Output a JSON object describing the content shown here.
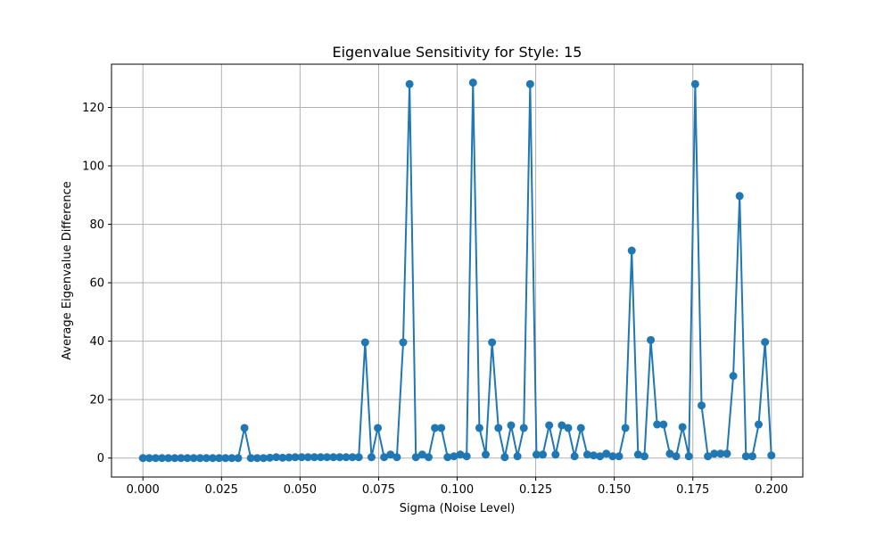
{
  "chart_data": {
    "type": "line",
    "title": "Eigenvalue Sensitivity for Style: 15",
    "xlabel": "Sigma (Noise Level)",
    "ylabel": "Average Eigenvalue Difference",
    "xlim": [
      -0.01,
      0.21
    ],
    "ylim": [
      -6.5,
      134.8
    ],
    "xticks": [
      0.0,
      0.025,
      0.05,
      0.075,
      0.1,
      0.125,
      0.15,
      0.175,
      0.2
    ],
    "xtick_labels": [
      "0.000",
      "0.025",
      "0.050",
      "0.075",
      "0.100",
      "0.125",
      "0.150",
      "0.175",
      "0.200"
    ],
    "yticks": [
      0,
      20,
      40,
      60,
      80,
      100,
      120
    ],
    "ytick_labels": [
      "0",
      "20",
      "40",
      "60",
      "80",
      "100",
      "120"
    ],
    "grid": true,
    "color": "#1f77b4",
    "marker": "circle",
    "series": [
      {
        "x": [
          0.0,
          0.00202,
          0.00404,
          0.00606,
          0.00808,
          0.0101,
          0.01212,
          0.01414,
          0.01616,
          0.01818,
          0.0202,
          0.02222,
          0.02424,
          0.02626,
          0.02828,
          0.0303,
          0.03232,
          0.03434,
          0.03636,
          0.03838,
          0.0404,
          0.04242,
          0.04444,
          0.04646,
          0.04848,
          0.05051,
          0.05253,
          0.05455,
          0.05657,
          0.05859,
          0.06061,
          0.06263,
          0.06465,
          0.06667,
          0.06869,
          0.07071,
          0.07273,
          0.07475,
          0.07677,
          0.07879,
          0.08081,
          0.08283,
          0.08485,
          0.08687,
          0.08889,
          0.09091,
          0.09293,
          0.09495,
          0.09697,
          0.09899,
          0.10101,
          0.10303,
          0.10505,
          0.10707,
          0.10909,
          0.11111,
          0.11313,
          0.11515,
          0.11717,
          0.11919,
          0.12121,
          0.12323,
          0.12525,
          0.12727,
          0.12929,
          0.13131,
          0.13333,
          0.13535,
          0.13737,
          0.13939,
          0.14141,
          0.14343,
          0.14545,
          0.14747,
          0.14949,
          0.15152,
          0.15354,
          0.15556,
          0.15758,
          0.1596,
          0.16162,
          0.16364,
          0.16566,
          0.16768,
          0.1697,
          0.17172,
          0.17374,
          0.17576,
          0.17778,
          0.1798,
          0.18182,
          0.18384,
          0.18586,
          0.18788,
          0.1899,
          0.19192,
          0.19394,
          0.19596,
          0.19798,
          0.2
        ],
        "y": [
          0.0,
          0.0,
          0.0,
          0.0,
          0.0,
          0.0,
          0.0,
          0.0,
          0.0,
          0.0,
          0.0,
          0.0,
          0.0,
          0.0,
          0.0,
          0.0,
          10.3,
          0.0,
          0.0,
          0.0,
          0.1,
          0.3,
          0.1,
          0.2,
          0.3,
          0.3,
          0.3,
          0.3,
          0.3,
          0.3,
          0.3,
          0.3,
          0.3,
          0.3,
          0.3,
          39.6,
          0.3,
          10.3,
          0.3,
          1.2,
          0.3,
          39.6,
          128.0,
          0.3,
          1.2,
          0.3,
          10.3,
          10.3,
          0.3,
          0.6,
          1.2,
          0.6,
          128.5,
          10.3,
          1.2,
          39.6,
          10.3,
          0.3,
          11.2,
          0.6,
          10.3,
          128.0,
          1.2,
          1.2,
          11.2,
          1.2,
          11.2,
          10.3,
          0.6,
          10.3,
          1.2,
          0.9,
          0.6,
          1.5,
          0.6,
          0.6,
          10.3,
          71.0,
          1.2,
          0.6,
          40.4,
          11.5,
          11.5,
          1.5,
          0.6,
          10.6,
          0.6,
          128.0,
          18.0,
          0.6,
          1.5,
          1.5,
          1.5,
          28.1,
          89.7,
          0.6,
          0.6,
          11.5,
          39.7,
          0.9
        ]
      }
    ]
  }
}
